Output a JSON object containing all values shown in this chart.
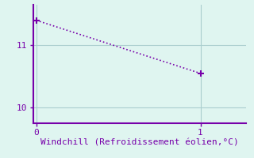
{
  "x": [
    0,
    1
  ],
  "y": [
    11.4,
    10.55
  ],
  "line_color": "#7700aa",
  "marker": "+",
  "marker_size": 6,
  "marker_color": "#7700aa",
  "linestyle": "dotted",
  "linewidth": 1.2,
  "background_color": "#dff5f0",
  "grid_color": "#aacece",
  "xlabel": "Windchill (Refroidissement éolien,°C)",
  "xlabel_color": "#7700aa",
  "xlabel_fontsize": 8,
  "xticks": [
    0,
    1
  ],
  "yticks": [
    10,
    11
  ],
  "ylim": [
    9.75,
    11.65
  ],
  "xlim": [
    -0.02,
    1.28
  ],
  "tick_color": "#7700aa",
  "tick_fontsize": 8,
  "spine_color": "#7700aa",
  "axis_linewidth": 1.5
}
